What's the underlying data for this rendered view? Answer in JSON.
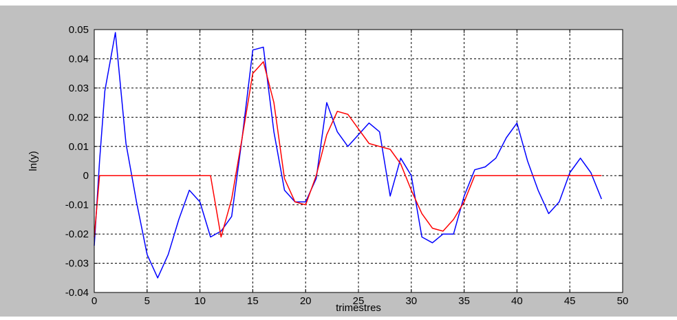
{
  "chart_data": {
    "type": "line",
    "xlabel": "trimestres",
    "ylabel": "ln(y)",
    "xlim": [
      0,
      50
    ],
    "ylim": [
      -0.04,
      0.05
    ],
    "grid": true,
    "x_ticks": [
      0,
      5,
      10,
      15,
      20,
      25,
      30,
      35,
      40,
      45,
      50
    ],
    "x_tick_labels": [
      "0",
      "5",
      "10",
      "15",
      "20",
      "25",
      "30",
      "35",
      "40",
      "45",
      "50"
    ],
    "y_ticks": [
      -0.04,
      -0.03,
      -0.02,
      -0.01,
      0,
      0.01,
      0.02,
      0.03,
      0.04,
      0.05
    ],
    "y_tick_labels": [
      "-0.04",
      "-0.03",
      "-0.02",
      "-0.01",
      "0",
      "0.01",
      "0.02",
      "0.03",
      "0.04",
      "0.05"
    ],
    "colors": {
      "figure_bg": "#c0c0c0",
      "axes_bg": "#ffffff"
    },
    "series": [
      {
        "color": "#0000ff",
        "x": [
          0,
          0.5,
          1,
          2,
          3,
          4,
          5,
          6,
          7,
          8,
          9,
          10,
          11,
          12,
          13,
          14,
          15,
          16,
          17,
          18,
          19,
          20,
          21,
          22,
          23,
          24,
          25,
          26,
          27,
          28,
          29,
          30,
          31,
          32,
          33,
          34,
          35,
          36,
          37,
          38,
          39,
          40,
          41,
          42,
          43,
          44,
          45,
          46,
          47,
          48
        ],
        "y": [
          -0.024,
          0.005,
          0.029,
          0.049,
          0.011,
          -0.009,
          -0.027,
          -0.035,
          -0.027,
          -0.015,
          -0.005,
          -0.009,
          -0.021,
          -0.019,
          -0.014,
          0.013,
          0.043,
          0.044,
          0.015,
          -0.005,
          -0.009,
          -0.009,
          -0.001,
          0.025,
          0.015,
          0.01,
          0.014,
          0.018,
          0.015,
          -0.007,
          0.006,
          0.0,
          -0.021,
          -0.023,
          -0.02,
          -0.02,
          -0.007,
          0.002,
          0.003,
          0.006,
          0.013,
          0.018,
          0.005,
          -0.005,
          -0.013,
          -0.009,
          0.001,
          0.006,
          0.001,
          -0.008
        ]
      },
      {
        "color": "#ff0000",
        "x": [
          0,
          0.5,
          11,
          12,
          13,
          14,
          15,
          16,
          17,
          18,
          19,
          20,
          21,
          22,
          23,
          24,
          25,
          26,
          27,
          28,
          29,
          30,
          31,
          32,
          33,
          34,
          35,
          36,
          37,
          40,
          45,
          48
        ],
        "y": [
          -0.021,
          0.0,
          0.0,
          -0.021,
          -0.008,
          0.013,
          0.035,
          0.039,
          0.025,
          -0.001,
          -0.009,
          -0.01,
          0.0,
          0.014,
          0.022,
          0.021,
          0.016,
          0.011,
          0.01,
          0.009,
          0.004,
          -0.005,
          -0.013,
          -0.018,
          -0.019,
          -0.015,
          -0.009,
          0.0,
          0.0,
          0.0,
          0.0,
          0.0
        ]
      }
    ]
  }
}
